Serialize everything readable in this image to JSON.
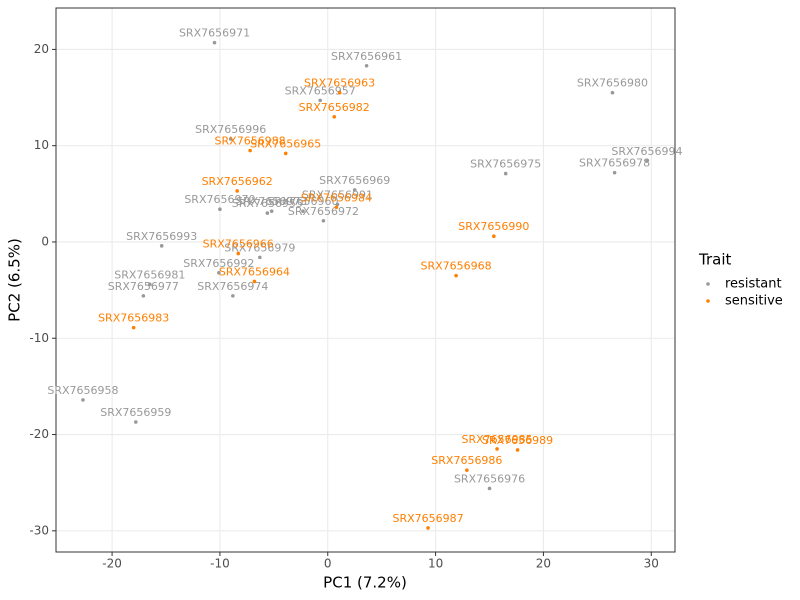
{
  "chart_data": {
    "type": "scatter",
    "x_label": "PC1 (7.2%)",
    "y_label": "PC2 (6.5%)",
    "xlim": [
      -25.2,
      32.2
    ],
    "ylim": [
      -32.2,
      24.3
    ],
    "xticks": [
      -20,
      -10,
      0,
      10,
      20,
      30
    ],
    "yticks": [
      -30,
      -20,
      -10,
      0,
      10,
      20
    ],
    "grid": true,
    "legend_title": "Trait",
    "legend_position": "right",
    "series": [
      {
        "name": "resistant",
        "color": "#999999",
        "labels": [
          "SRX7656971",
          "SRX7656961",
          "SRX7656957",
          "SRX7656980",
          "SRX7656996",
          "SRX7656994",
          "SRX7656978",
          "SRX7656975",
          "SRX7656991",
          "SRX7656969",
          "SRX7656970",
          "SRX7656955",
          "SRX7656973",
          "SRX7656960",
          "SRX7656972",
          "SRX7656993",
          "SRX7656979",
          "SRX7656992",
          "SRX7656981",
          "SRX7656977",
          "SRX7656974",
          "SRX7656958",
          "SRX7656959",
          "SRX7656976"
        ],
        "x": [
          -10.5,
          3.6,
          -0.7,
          26.4,
          -9.0,
          29.6,
          26.6,
          16.5,
          0.9,
          2.5,
          -10.0,
          -5.6,
          -5.2,
          -2.3,
          -0.4,
          -15.4,
          -6.3,
          -10.1,
          -16.5,
          -17.1,
          -8.8,
          -22.7,
          -17.8,
          15.0
        ],
        "y": [
          20.7,
          18.3,
          14.7,
          15.5,
          10.7,
          8.4,
          7.2,
          7.1,
          3.9,
          5.4,
          3.4,
          3.0,
          3.2,
          3.2,
          2.2,
          -0.4,
          -1.6,
          -3.2,
          -4.4,
          -5.6,
          -5.6,
          -16.4,
          -18.7,
          -25.6
        ]
      },
      {
        "name": "sensitive",
        "color": "#ff7f00",
        "labels": [
          "SRX7656963",
          "SRX7656982",
          "SRX7656988",
          "SRX7656965",
          "SRX7656962",
          "SRX7656984",
          "SRX7656990",
          "SRX7656966",
          "SRX7656964",
          "SRX7656968",
          "SRX7656983",
          "SRX7656985",
          "SRX7656989",
          "SRX7656986",
          "SRX7656987"
        ],
        "x": [
          1.1,
          0.6,
          -7.2,
          -3.9,
          -8.4,
          0.8,
          15.4,
          -8.3,
          -6.8,
          11.9,
          -18.0,
          15.7,
          17.6,
          12.9,
          9.3
        ],
        "y": [
          15.5,
          13.0,
          9.5,
          9.2,
          5.3,
          3.6,
          0.6,
          -1.2,
          -4.1,
          -3.5,
          -8.9,
          -21.5,
          -21.6,
          -23.7,
          -29.7
        ]
      }
    ]
  }
}
